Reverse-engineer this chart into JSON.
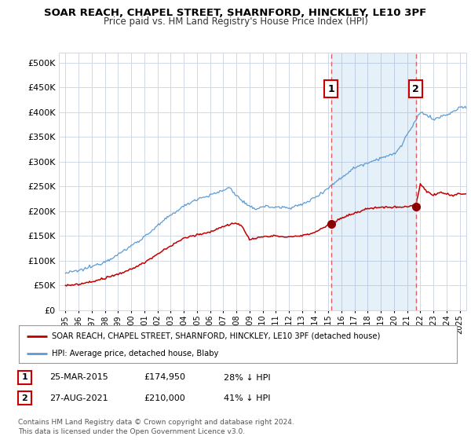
{
  "title": "SOAR REACH, CHAPEL STREET, SHARNFORD, HINCKLEY, LE10 3PF",
  "subtitle": "Price paid vs. HM Land Registry's House Price Index (HPI)",
  "ylabel_ticks": [
    "£0",
    "£50K",
    "£100K",
    "£150K",
    "£200K",
    "£250K",
    "£300K",
    "£350K",
    "£400K",
    "£450K",
    "£500K"
  ],
  "ytick_values": [
    0,
    50000,
    100000,
    150000,
    200000,
    250000,
    300000,
    350000,
    400000,
    450000,
    500000
  ],
  "ylim": [
    0,
    520000
  ],
  "xlim_start": 1994.5,
  "xlim_end": 2025.5,
  "hpi_color": "#5b9bd5",
  "hpi_fill_color": "#ddeeff",
  "price_color": "#c00000",
  "vline_color": "#e06060",
  "marker_color": "#8b0000",
  "sale1_x": 2015.2,
  "sale1_y": 174950,
  "sale2_x": 2021.65,
  "sale2_y": 210000,
  "annotation1_label": "1",
  "annotation2_label": "2",
  "legend_line1": "SOAR REACH, CHAPEL STREET, SHARNFORD, HINCKLEY, LE10 3PF (detached house)",
  "legend_line2": "HPI: Average price, detached house, Blaby",
  "table_row1": [
    "1",
    "25-MAR-2015",
    "£174,950",
    "28% ↓ HPI"
  ],
  "table_row2": [
    "2",
    "27-AUG-2021",
    "£210,000",
    "41% ↓ HPI"
  ],
  "footnote": "Contains HM Land Registry data © Crown copyright and database right 2024.\nThis data is licensed under the Open Government Licence v3.0.",
  "background_color": "#ffffff",
  "plot_bg_color": "#ffffff",
  "grid_color": "#d0d8e8",
  "xtick_years": [
    1995,
    1996,
    1997,
    1998,
    1999,
    2000,
    2001,
    2002,
    2003,
    2004,
    2005,
    2006,
    2007,
    2008,
    2009,
    2010,
    2011,
    2012,
    2013,
    2014,
    2015,
    2016,
    2017,
    2018,
    2019,
    2020,
    2021,
    2022,
    2023,
    2024,
    2025
  ],
  "xtick_labels": [
    "1995",
    "1996",
    "1997",
    "1998",
    "1999",
    "2000",
    "2001",
    "2002",
    "2003",
    "2004",
    "2005",
    "2006",
    "2007",
    "2008",
    "2009",
    "2010",
    "2011",
    "2012",
    "2013",
    "2014",
    "2015",
    "2016",
    "2017",
    "2018",
    "2019",
    "2020",
    "2021",
    "2022",
    "2023",
    "2024",
    "2025"
  ]
}
